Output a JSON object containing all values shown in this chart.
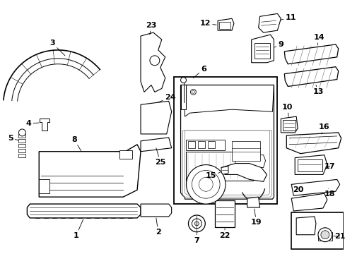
{
  "bg_color": "#ffffff",
  "figsize": [
    4.89,
    3.6
  ],
  "dpi": 100
}
